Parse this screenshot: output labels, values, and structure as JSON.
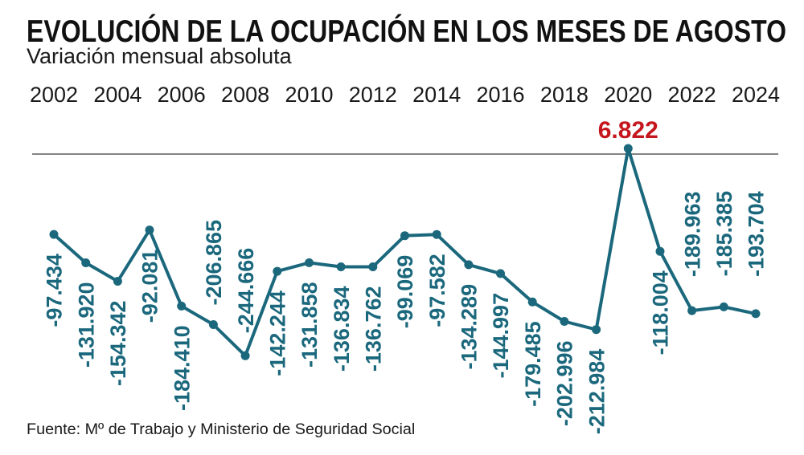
{
  "chart_data": {
    "type": "line",
    "title": "EVOLUCIÓN DE LA OCUPACIÓN EN LOS MESES DE AGOSTO",
    "subtitle": "Variación mensual absoluta",
    "source": "Fuente: Mº de Trabajo y Ministerio de Seguridad Social",
    "xlabel": "",
    "ylabel": "",
    "grid": false,
    "x": [
      2002,
      2003,
      2004,
      2005,
      2006,
      2007,
      2008,
      2009,
      2010,
      2011,
      2012,
      2013,
      2014,
      2015,
      2016,
      2017,
      2018,
      2019,
      2020,
      2021,
      2022,
      2023,
      2024
    ],
    "x_ticks": [
      2002,
      2004,
      2006,
      2008,
      2010,
      2012,
      2014,
      2016,
      2018,
      2020,
      2022,
      2024
    ],
    "x_tick_labels": [
      "2002",
      "2004",
      "2006",
      "2008",
      "2010",
      "2012",
      "2014",
      "2016",
      "2018",
      "2020",
      "2022",
      "2024"
    ],
    "values": [
      -97434,
      -131920,
      -154342,
      -92081,
      -184410,
      -206865,
      -244666,
      -142244,
      -131858,
      -136834,
      -136762,
      -99069,
      -97582,
      -134289,
      -144997,
      -179485,
      -202996,
      -212984,
      6822,
      -118004,
      -189963,
      -185385,
      -193704
    ],
    "data_labels": [
      "-97.434",
      "-131.920",
      "-154.342",
      "-92.081",
      "-184.410",
      "-206.865",
      "-244.666",
      "-142.244",
      "-131.858",
      "-136.834",
      "-136.762",
      "-99.069",
      "-97.582",
      "-134.289",
      "-144.997",
      "-179.485",
      "-202.996",
      "-212.984",
      "6.822",
      "-118.004",
      "-189.963",
      "-185.385",
      "-193.704"
    ],
    "reference_line": 0,
    "ylim": [
      -250000,
      10000
    ],
    "colors": {
      "series": "#1b687d",
      "highlight": "#c4161c",
      "reference_line": "#3a3a3a"
    }
  }
}
